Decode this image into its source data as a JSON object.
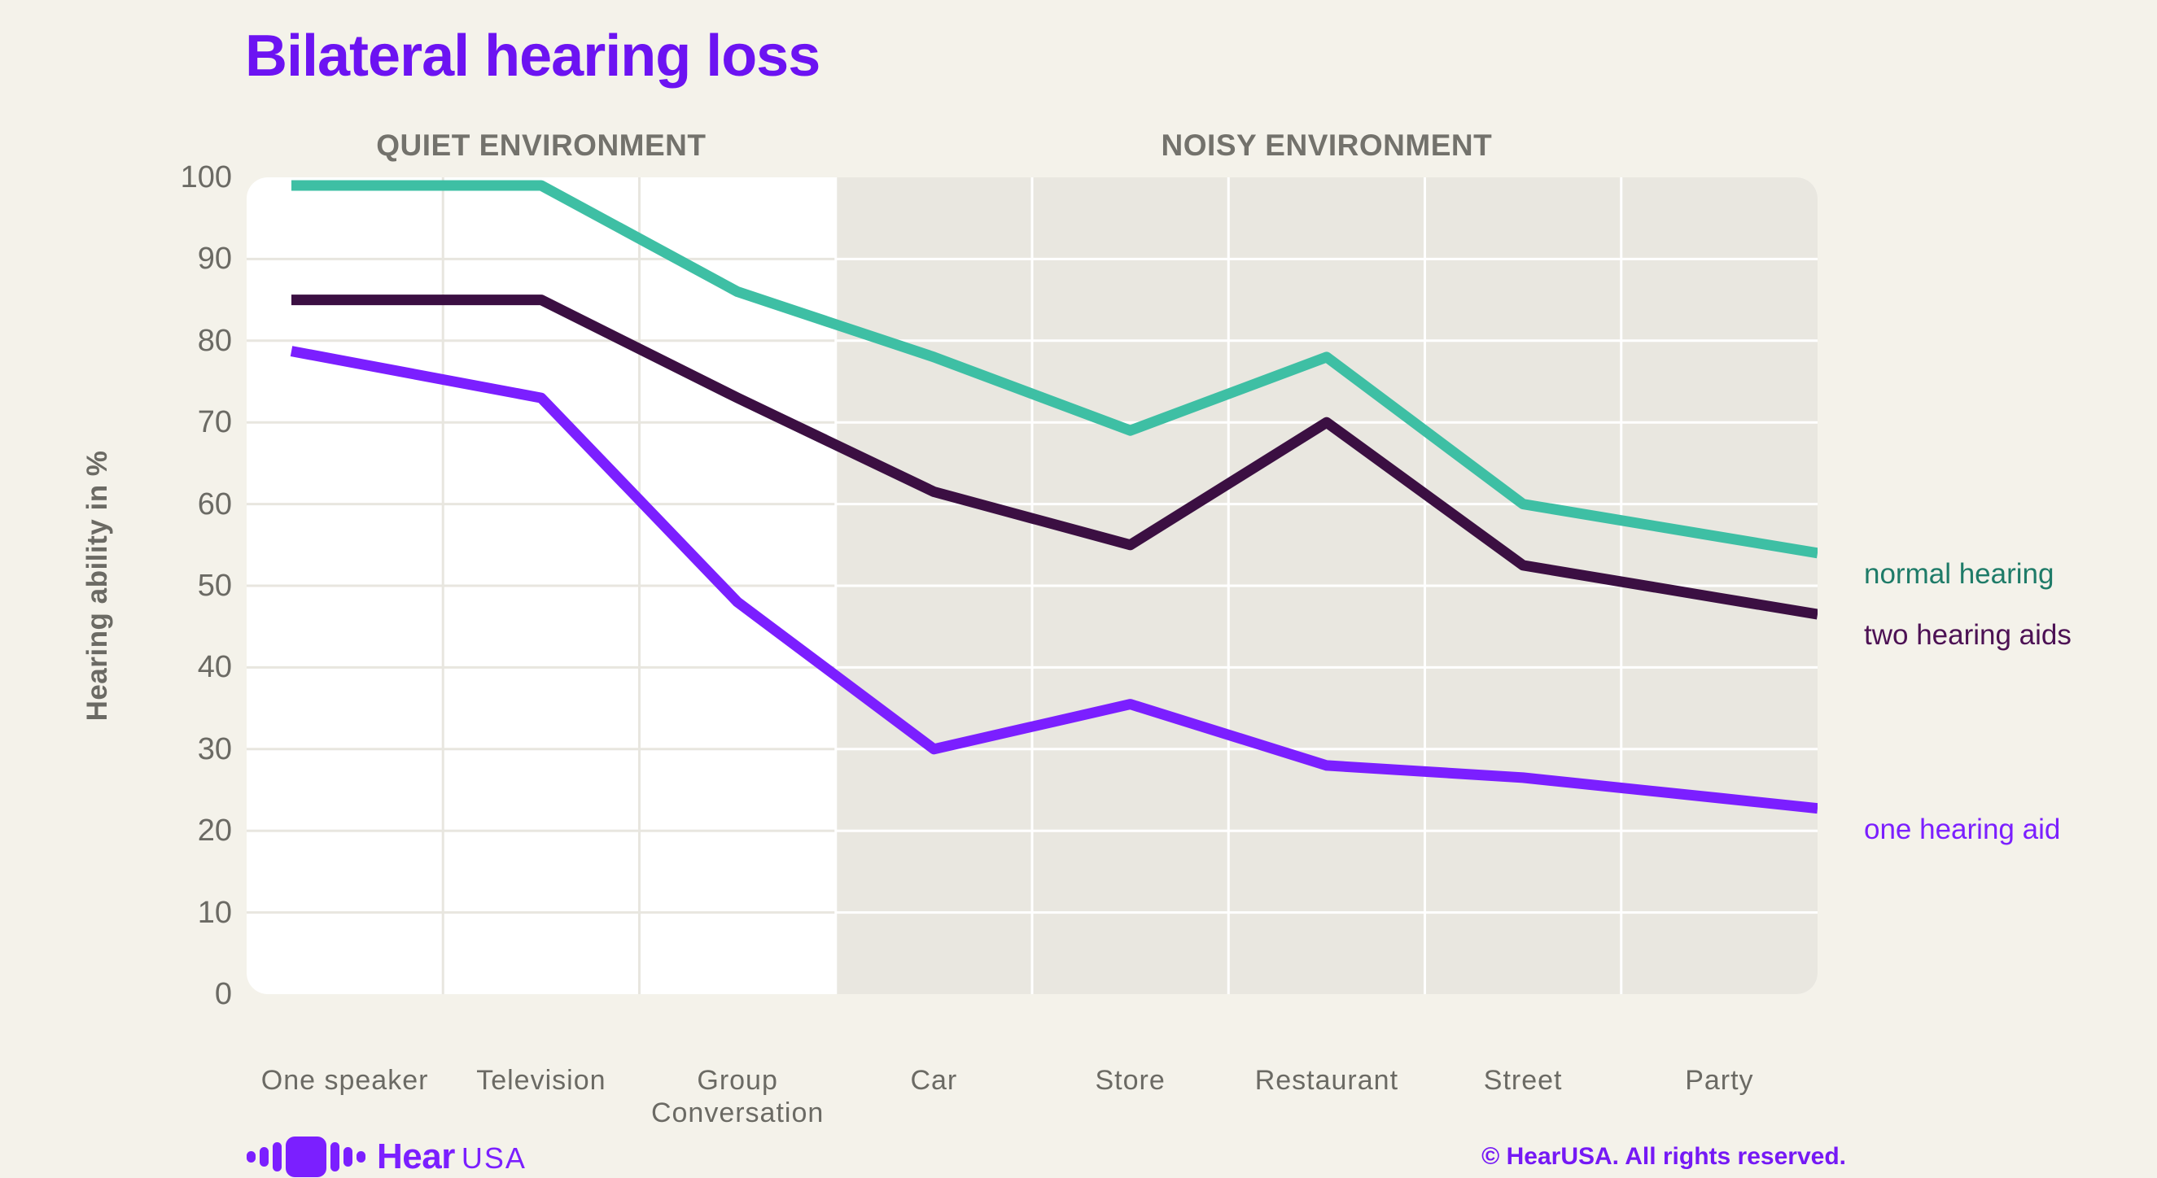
{
  "title": "Bilateral hearing loss",
  "colors": {
    "background": "#F4F2EA",
    "title": "#6C13F2",
    "plot_quiet_bg": "#FFFFFF",
    "plot_noisy_bg": "#E9E7E0",
    "gridline_on_white": "#E8E6DF",
    "gridline_on_gray": "#FFFFFF",
    "axis_text": "#6B6A64",
    "section_header_text": "#73726C",
    "logo_purple": "#7B1FFF",
    "copyright_purple": "#7519F5"
  },
  "sections": [
    {
      "label": "QUIET ENVIRONMENT",
      "from_category": 0,
      "to_category": 3
    },
    {
      "label": "NOISY ENVIRONMENT",
      "from_category": 3,
      "to_category": 8
    }
  ],
  "chart_data": {
    "type": "line",
    "title": "Bilateral hearing loss",
    "ylabel": "Hearing ability in %",
    "xlabel": "",
    "ylim": [
      0,
      100
    ],
    "yticks": [
      0,
      10,
      20,
      30,
      40,
      50,
      60,
      70,
      80,
      90,
      100
    ],
    "grid": true,
    "legend_position": "right-of-line-ends",
    "categories": [
      "One speaker",
      "Television",
      "Group Conversation",
      "Car",
      "Store",
      "Restaurant",
      "Street",
      "Party"
    ],
    "series": [
      {
        "name": "normal hearing",
        "line_color": "#3EBFA4",
        "label_color": "#1E7B68",
        "values": [
          99,
          99,
          86,
          78,
          69,
          78,
          60,
          56
        ]
      },
      {
        "name": "two hearing aids",
        "line_color": "#3B0F42",
        "label_color": "#4C1154",
        "values": [
          85,
          85,
          73,
          61.5,
          55,
          70,
          52.5,
          48.5
        ]
      },
      {
        "name": "one hearing aid",
        "line_color": "#7B1FFF",
        "label_color": "#7B1FFF",
        "values": [
          77.5,
          73,
          48,
          30,
          35.5,
          28,
          26.5,
          24
        ]
      }
    ]
  },
  "footer": {
    "logo_bold": "Hear",
    "logo_light": "USA",
    "copyright": "© HearUSA. All rights reserved."
  }
}
